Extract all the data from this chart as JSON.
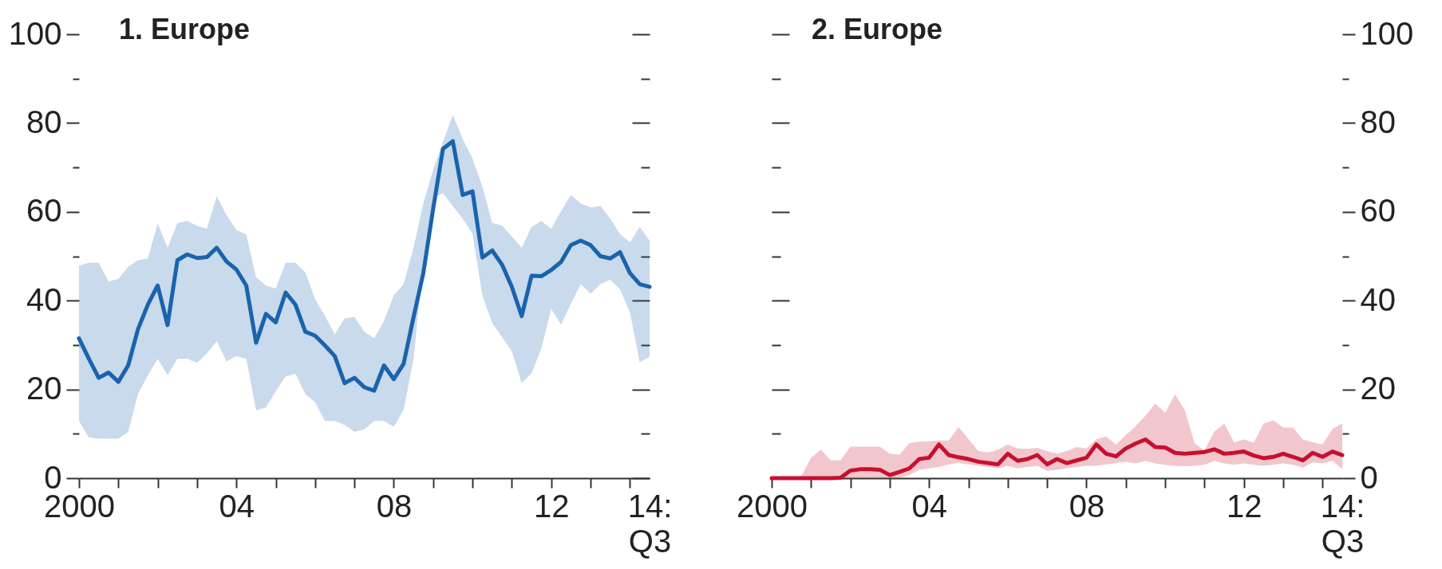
{
  "chart_data": [
    {
      "type": "line",
      "title": "1. Europe",
      "x": [
        2000,
        2000.25,
        2000.5,
        2000.75,
        2001,
        2001.25,
        2001.5,
        2001.75,
        2002,
        2002.25,
        2002.5,
        2002.75,
        2003,
        2003.25,
        2003.5,
        2003.75,
        2004,
        2004.25,
        2004.5,
        2004.75,
        2005,
        2005.25,
        2005.5,
        2005.75,
        2006,
        2006.25,
        2006.5,
        2006.75,
        2007,
        2007.25,
        2007.5,
        2007.75,
        2008,
        2008.25,
        2008.5,
        2008.75,
        2009,
        2009.25,
        2009.5,
        2009.75,
        2010,
        2010.25,
        2010.5,
        2010.75,
        2011,
        2011.25,
        2011.5,
        2011.75,
        2012,
        2012.25,
        2012.5,
        2012.75,
        2013,
        2013.25,
        2013.5,
        2013.75,
        2014,
        2014.25,
        2014.5
      ],
      "series": [
        {
          "color": "#1a63ad",
          "values": [
            31.5,
            26.9,
            22.6,
            23.8,
            21.7,
            25.4,
            33.6,
            39.1,
            43.4,
            34.5,
            49.1,
            50.4,
            49.6,
            49.8,
            51.9,
            48.8,
            47.0,
            43.4,
            30.5,
            37.0,
            35.1,
            41.8,
            39.1,
            33.0,
            32.1,
            29.9,
            27.5,
            21.4,
            22.6,
            20.5,
            19.7,
            25.4,
            22.3,
            25.8,
            36.2,
            46.2,
            60.7,
            74.2,
            75.9,
            63.8,
            64.6,
            49.7,
            51.3,
            48.1,
            43.1,
            36.5,
            45.6,
            45.5,
            46.9,
            48.7,
            52.5,
            53.5,
            52.5,
            50.0,
            49.5,
            50.9,
            46.2,
            43.7,
            43.1
          ],
          "lower": [
            12.9,
            9.2,
            8.9,
            8.9,
            8.9,
            10.4,
            19.0,
            23.2,
            26.9,
            23.2,
            26.9,
            26.9,
            26.0,
            28.1,
            30.9,
            26.3,
            27.5,
            26.9,
            15.3,
            15.9,
            19.6,
            22.9,
            23.5,
            19.0,
            17.1,
            12.9,
            12.9,
            12.0,
            10.4,
            11.0,
            12.9,
            12.9,
            11.6,
            15.4,
            26.7,
            48.7,
            63.2,
            64.2,
            61.3,
            58.5,
            55.0,
            41.2,
            34.9,
            31.8,
            28.6,
            21.4,
            23.6,
            29.2,
            38.1,
            34.6,
            39.3,
            43.7,
            41.5,
            43.7,
            44.7,
            42.5,
            37.4,
            26.1,
            27.4
          ],
          "upper": [
            47.9,
            48.5,
            48.5,
            44.3,
            44.9,
            47.6,
            49.1,
            49.5,
            57.4,
            51.9,
            57.4,
            58.0,
            56.8,
            56.2,
            63.5,
            59.2,
            55.9,
            54.9,
            45.3,
            43.4,
            42.7,
            48.5,
            48.5,
            46.4,
            40.3,
            36.6,
            32.4,
            36.0,
            36.3,
            33.0,
            31.5,
            35.4,
            41.2,
            43.7,
            51.9,
            61.9,
            69.5,
            75.8,
            81.8,
            76.4,
            72.0,
            65.7,
            57.5,
            56.9,
            54.4,
            51.9,
            56.6,
            57.9,
            56.2,
            60.1,
            63.8,
            61.9,
            61.0,
            61.3,
            58.5,
            55.0,
            53.1,
            56.6,
            53.5
          ]
        }
      ],
      "xlim": [
        2000,
        2014.5
      ],
      "xticks": [
        2000,
        {
          "value": 2001,
          "label": null
        },
        {
          "value": 2002,
          "label": null
        },
        {
          "value": 2003,
          "label": null
        },
        {
          "value": 2004,
          "label": "04"
        },
        {
          "value": 2005,
          "label": null
        },
        {
          "value": 2006,
          "label": null
        },
        {
          "value": 2007,
          "label": null
        },
        {
          "value": 2008,
          "label": "08"
        },
        {
          "value": 2009,
          "label": null
        },
        {
          "value": 2010,
          "label": null
        },
        {
          "value": 2011,
          "label": null
        },
        {
          "value": 2012,
          "label": "12"
        },
        {
          "value": 2013,
          "label": null
        },
        {
          "value": 2014,
          "label": null
        },
        {
          "value": 2014.5,
          "label": "14:\nQ3"
        }
      ],
      "ylim": [
        0,
        100
      ],
      "yticks": [
        0,
        {
          "value": 10,
          "label": null
        },
        20,
        {
          "value": 30,
          "label": null
        },
        40,
        {
          "value": 50,
          "label": null
        },
        60,
        {
          "value": 70,
          "label": null
        },
        80,
        {
          "value": 90,
          "label": null
        },
        100
      ]
    },
    {
      "type": "line",
      "title": "2. Europe",
      "x": [
        2000,
        2000.25,
        2000.5,
        2000.75,
        2001,
        2001.25,
        2001.5,
        2001.75,
        2002,
        2002.25,
        2002.5,
        2002.75,
        2003,
        2003.25,
        2003.5,
        2003.75,
        2004,
        2004.25,
        2004.5,
        2004.75,
        2005,
        2005.25,
        2005.5,
        2005.75,
        2006,
        2006.25,
        2006.5,
        2006.75,
        2007,
        2007.25,
        2007.5,
        2007.75,
        2008,
        2008.25,
        2008.5,
        2008.75,
        2009,
        2009.25,
        2009.5,
        2009.75,
        2010,
        2010.25,
        2010.5,
        2010.75,
        2011,
        2011.25,
        2011.5,
        2011.75,
        2012,
        2012.25,
        2012.5,
        2012.75,
        2013,
        2013.25,
        2013.5,
        2013.75,
        2014,
        2014.25,
        2014.5
      ],
      "series": [
        {
          "color": "#c8102e",
          "axis": "y2",
          "values": [
            0,
            0,
            0,
            0,
            0,
            0,
            0,
            0.1,
            1.7,
            2.0,
            2.0,
            1.9,
            0.7,
            1.4,
            2.2,
            4.3,
            4.6,
            7.6,
            5.2,
            4.7,
            4.3,
            3.7,
            3.4,
            3.1,
            5.5,
            3.9,
            4.3,
            5.2,
            3.1,
            4.3,
            3.4,
            4.0,
            4.6,
            7.6,
            5.5,
            4.9,
            6.7,
            7.8,
            8.7,
            7.0,
            6.9,
            5.7,
            5.5,
            5.7,
            5.9,
            6.5,
            5.5,
            5.7,
            6.0,
            5.1,
            4.5,
            4.8,
            5.5,
            4.8,
            4.0,
            5.7,
            4.8,
            6.0,
            5.2
          ],
          "lower": [
            0,
            0,
            0,
            0,
            0,
            0,
            0,
            0,
            0,
            0,
            0,
            0,
            0,
            0.1,
            0.7,
            1.9,
            2.2,
            2.5,
            3.1,
            3.4,
            3.1,
            2.8,
            2.5,
            2.2,
            2.8,
            2.2,
            2.5,
            2.8,
            1.6,
            1.9,
            2.2,
            2.5,
            2.8,
            2.8,
            3.1,
            3.4,
            3.7,
            3.3,
            3.9,
            3.3,
            3.0,
            2.8,
            2.7,
            2.8,
            3.0,
            3.9,
            3.3,
            3.0,
            3.3,
            3.0,
            2.8,
            3.0,
            3.3,
            3.0,
            2.4,
            3.6,
            3.3,
            3.9,
            2.0
          ],
          "upper": [
            0,
            0,
            0,
            0.4,
            4.6,
            6.4,
            4.0,
            4.0,
            7.1,
            7.1,
            7.1,
            7.1,
            5.5,
            5.3,
            7.9,
            8.2,
            8.3,
            8.5,
            8.5,
            11.5,
            8.8,
            6.1,
            5.8,
            6.4,
            7.6,
            6.7,
            6.6,
            6.8,
            6.1,
            5.5,
            6.1,
            7.0,
            6.7,
            8.8,
            9.4,
            7.6,
            9.7,
            11.7,
            14.1,
            16.8,
            14.7,
            18.9,
            15.3,
            7.8,
            6.3,
            10.5,
            12.3,
            8.1,
            8.7,
            8.0,
            12.3,
            13.0,
            11.4,
            11.4,
            8.7,
            8.1,
            7.6,
            11.1,
            12.3
          ]
        }
      ],
      "xlim": [
        2000,
        2014.5
      ],
      "xticks": [
        2000,
        {
          "value": 2001,
          "label": null
        },
        {
          "value": 2002,
          "label": null
        },
        {
          "value": 2003,
          "label": null
        },
        {
          "value": 2004,
          "label": "04"
        },
        {
          "value": 2005,
          "label": null
        },
        {
          "value": 2006,
          "label": null
        },
        {
          "value": 2007,
          "label": null
        },
        {
          "value": 2008,
          "label": "08"
        },
        {
          "value": 2009,
          "label": null
        },
        {
          "value": 2010,
          "label": null
        },
        {
          "value": 2011,
          "label": null
        },
        {
          "value": 2012,
          "label": "12"
        },
        {
          "value": 2013,
          "label": null
        },
        {
          "value": 2014,
          "label": null
        },
        {
          "value": 2014.5,
          "label": "14:\nQ3"
        }
      ],
      "y2lim": [
        0,
        100
      ],
      "y2ticks": [
        0,
        {
          "value": 10,
          "label": null
        },
        20,
        {
          "value": 30,
          "label": null
        },
        40,
        {
          "value": 50,
          "label": null
        },
        60,
        {
          "value": 70,
          "label": null
        },
        80,
        {
          "value": 90,
          "label": null
        },
        100
      ]
    }
  ]
}
